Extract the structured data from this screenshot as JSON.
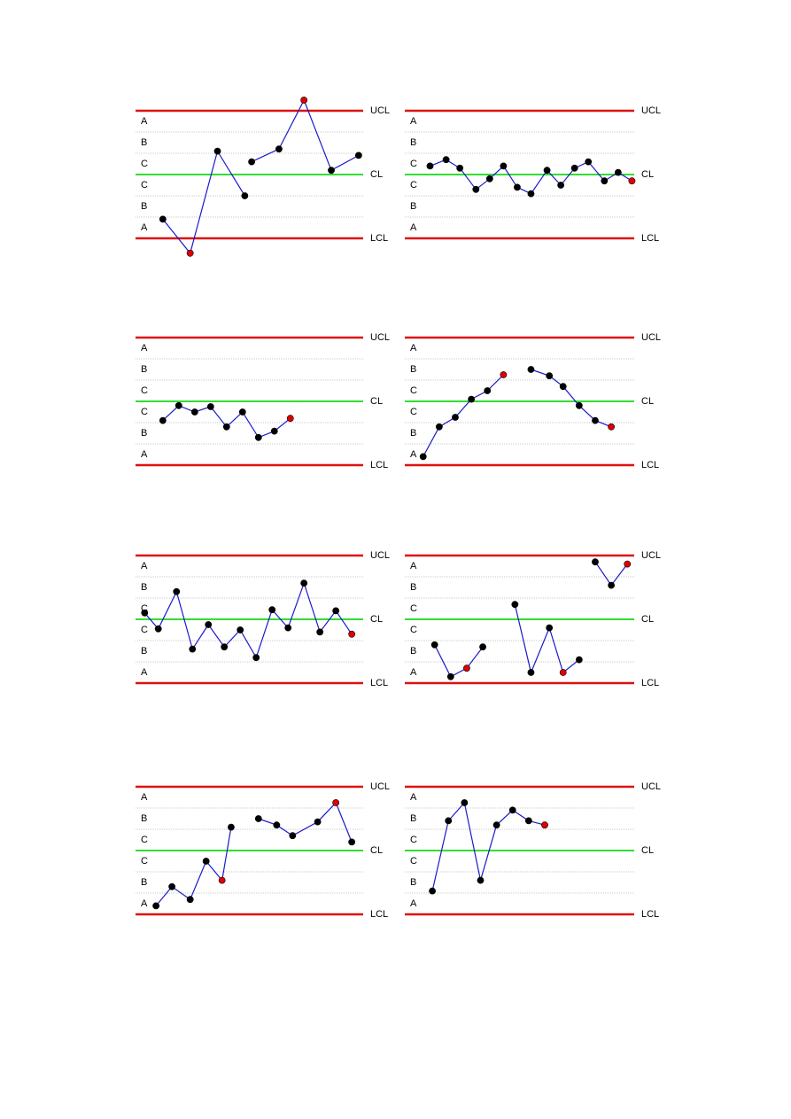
{
  "chart_data": [
    {
      "type": "line",
      "xlim": [
        0,
        100
      ],
      "ylim": [
        -3,
        3
      ],
      "color": "#1a1acc",
      "yticks": [
        {
          "value": 3,
          "label": "UCL"
        },
        {
          "value": 0,
          "label": "CL"
        },
        {
          "value": -3,
          "label": "LCL"
        }
      ],
      "zones": [
        "A",
        "B",
        "C",
        "C",
        "B",
        "A"
      ],
      "x": [
        12,
        24,
        36,
        48,
        null,
        51,
        63,
        74,
        86,
        98
      ],
      "values": [
        -2.1,
        -3.7,
        1.1,
        -1.0,
        null,
        0.6,
        1.2,
        3.5,
        0.2,
        0.9
      ],
      "marker_colors": [
        "#000000",
        "#e00000",
        "#000000",
        "#000000",
        null,
        "#000000",
        "#000000",
        "#e00000",
        "#000000",
        "#000000"
      ]
    },
    {
      "type": "line",
      "xlim": [
        0,
        100
      ],
      "ylim": [
        -3,
        3
      ],
      "color": "#1a1acc",
      "yticks": [
        {
          "value": 3,
          "label": "UCL"
        },
        {
          "value": 0,
          "label": "CL"
        },
        {
          "value": -3,
          "label": "LCL"
        }
      ],
      "zones": [
        "A",
        "B",
        "C",
        "C",
        "B",
        "A"
      ],
      "x": [
        11,
        18,
        24,
        31,
        37,
        43,
        49,
        55,
        62,
        68,
        74,
        80,
        87,
        93,
        99
      ],
      "values": [
        0.4,
        0.7,
        0.3,
        -0.7,
        -0.2,
        0.4,
        -0.6,
        -0.9,
        0.2,
        -0.5,
        0.3,
        0.6,
        -0.3,
        0.1,
        -0.3
      ],
      "marker_colors": [
        "#000000",
        "#000000",
        "#000000",
        "#000000",
        "#000000",
        "#000000",
        "#000000",
        "#000000",
        "#000000",
        "#000000",
        "#000000",
        "#000000",
        "#000000",
        "#000000",
        "#e00000"
      ]
    },
    {
      "type": "line",
      "xlim": [
        0,
        100
      ],
      "ylim": [
        -3,
        3
      ],
      "color": "#1a1acc",
      "yticks": [
        {
          "value": 3,
          "label": "UCL"
        },
        {
          "value": 0,
          "label": "CL"
        },
        {
          "value": -3,
          "label": "LCL"
        }
      ],
      "zones": [
        "A",
        "B",
        "C",
        "C",
        "B",
        "A"
      ],
      "x": [
        12,
        19,
        26,
        33,
        40,
        47,
        54,
        61,
        68
      ],
      "values": [
        -0.9,
        -0.2,
        -0.5,
        -0.25,
        -1.2,
        -0.5,
        -1.7,
        -1.4,
        -0.8
      ],
      "marker_colors": [
        "#000000",
        "#000000",
        "#000000",
        "#000000",
        "#000000",
        "#000000",
        "#000000",
        "#000000",
        "#e00000"
      ]
    },
    {
      "type": "line",
      "xlim": [
        0,
        100
      ],
      "ylim": [
        -3,
        3
      ],
      "color": "#1a1acc",
      "yticks": [
        {
          "value": 3,
          "label": "UCL"
        },
        {
          "value": 0,
          "label": "CL"
        },
        {
          "value": -3,
          "label": "LCL"
        }
      ],
      "zones": [
        "A",
        "B",
        "C",
        "C",
        "B",
        "A"
      ],
      "x": [
        8,
        15,
        22,
        29,
        36,
        43,
        null,
        55,
        63,
        69,
        76,
        83,
        90
      ],
      "values": [
        -2.6,
        -1.2,
        -0.75,
        0.1,
        0.5,
        1.25,
        null,
        1.5,
        1.2,
        0.7,
        -0.2,
        -0.9,
        -1.2
      ],
      "marker_colors": [
        "#000000",
        "#000000",
        "#000000",
        "#000000",
        "#000000",
        "#e00000",
        null,
        "#000000",
        "#000000",
        "#000000",
        "#000000",
        "#000000",
        "#e00000"
      ]
    },
    {
      "type": "line",
      "xlim": [
        0,
        100
      ],
      "ylim": [
        -3,
        3
      ],
      "color": "#1a1acc",
      "yticks": [
        {
          "value": 3,
          "label": "UCL"
        },
        {
          "value": 0,
          "label": "CL"
        },
        {
          "value": -3,
          "label": "LCL"
        }
      ],
      "zones": [
        "A",
        "B",
        "C",
        "C",
        "B",
        "A"
      ],
      "x": [
        4,
        10,
        18,
        25,
        32,
        39,
        46,
        53,
        60,
        67,
        74,
        81,
        88,
        95
      ],
      "values": [
        0.3,
        -0.45,
        1.3,
        -1.4,
        -0.25,
        -1.3,
        -0.5,
        -1.8,
        0.45,
        -0.4,
        1.7,
        -0.6,
        0.4,
        -0.7
      ],
      "marker_colors": [
        "#000000",
        "#000000",
        "#000000",
        "#000000",
        "#000000",
        "#000000",
        "#000000",
        "#000000",
        "#000000",
        "#000000",
        "#000000",
        "#000000",
        "#000000",
        "#e00000"
      ]
    },
    {
      "type": "line",
      "xlim": [
        0,
        100
      ],
      "ylim": [
        -3,
        3
      ],
      "color": "#1a1acc",
      "yticks": [
        {
          "value": 3,
          "label": "UCL"
        },
        {
          "value": 0,
          "label": "CL"
        },
        {
          "value": -3,
          "label": "LCL"
        }
      ],
      "zones": [
        "A",
        "B",
        "C",
        "C",
        "B",
        "A"
      ],
      "x": [
        13,
        20,
        27,
        34,
        null,
        48,
        55,
        63,
        69,
        76,
        null,
        83,
        90,
        97
      ],
      "values": [
        -1.2,
        -2.7,
        -2.3,
        -1.3,
        null,
        0.7,
        -2.5,
        -0.4,
        -2.5,
        -1.9,
        null,
        2.7,
        1.6,
        2.6
      ],
      "marker_colors": [
        "#000000",
        "#000000",
        "#e00000",
        "#000000",
        null,
        "#000000",
        "#000000",
        "#000000",
        "#e00000",
        "#000000",
        null,
        "#000000",
        "#000000",
        "#e00000"
      ]
    },
    {
      "type": "line",
      "xlim": [
        0,
        100
      ],
      "ylim": [
        -3,
        3
      ],
      "color": "#1a1acc",
      "yticks": [
        {
          "value": 3,
          "label": "UCL"
        },
        {
          "value": 0,
          "label": "CL"
        },
        {
          "value": -3,
          "label": "LCL"
        }
      ],
      "zones": [
        "A",
        "B",
        "C",
        "C",
        "B",
        "A"
      ],
      "x": [
        9,
        16,
        24,
        31,
        38,
        42,
        null,
        54,
        62,
        69,
        80,
        88,
        95
      ],
      "values": [
        -2.6,
        -1.7,
        -2.3,
        -0.5,
        -1.4,
        1.1,
        null,
        1.5,
        1.2,
        0.7,
        1.35,
        2.25,
        0.4
      ],
      "marker_colors": [
        "#000000",
        "#000000",
        "#000000",
        "#000000",
        "#e00000",
        "#000000",
        null,
        "#000000",
        "#000000",
        "#000000",
        "#000000",
        "#e00000",
        "#000000"
      ]
    },
    {
      "type": "line",
      "xlim": [
        0,
        100
      ],
      "ylim": [
        -3,
        3
      ],
      "color": "#1a1acc",
      "yticks": [
        {
          "value": 3,
          "label": "UCL"
        },
        {
          "value": 0,
          "label": "CL"
        },
        {
          "value": -3,
          "label": "LCL"
        }
      ],
      "zones": [
        "A",
        "B",
        "C",
        "C",
        "B",
        "A"
      ],
      "x": [
        12,
        19,
        26,
        33,
        40,
        47,
        54,
        61
      ],
      "values": [
        -1.9,
        1.4,
        2.25,
        -1.4,
        1.2,
        1.9,
        1.4,
        1.2
      ],
      "marker_colors": [
        "#000000",
        "#000000",
        "#000000",
        "#000000",
        "#000000",
        "#000000",
        "#000000",
        "#e00000"
      ]
    }
  ]
}
